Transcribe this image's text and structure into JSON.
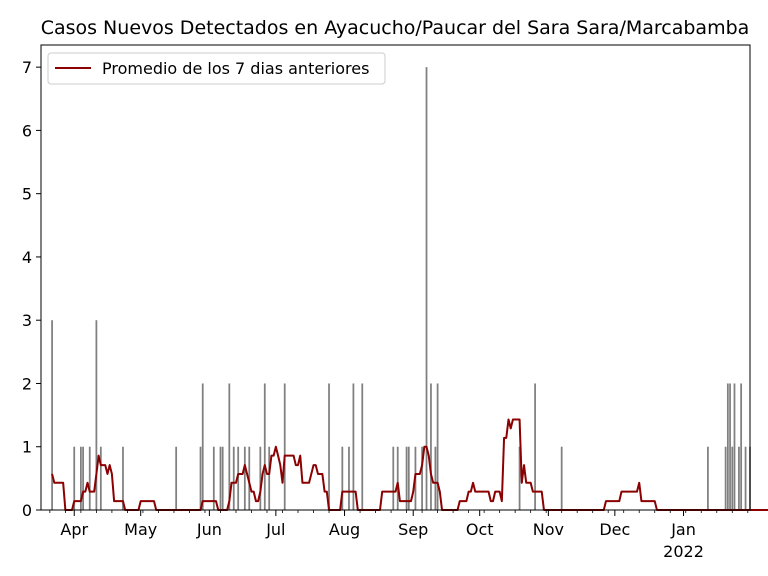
{
  "chart_data": {
    "type": "bar",
    "title": "Casos Nuevos Detectados en Ayacucho/Paucar del Sara Sara/Marcabamba",
    "xlabel": "",
    "ylabel": "",
    "x_start": "2021-03-17",
    "x_end": "2022-01-31",
    "ylim": [
      0,
      7.35
    ],
    "yticks": [
      0,
      1,
      2,
      3,
      4,
      5,
      6,
      7
    ],
    "xticks": [
      {
        "date": "2021-04-01",
        "label": "Apr",
        "sublabel": ""
      },
      {
        "date": "2021-05-01",
        "label": "May",
        "sublabel": ""
      },
      {
        "date": "2021-06-01",
        "label": "Jun",
        "sublabel": ""
      },
      {
        "date": "2021-07-01",
        "label": "Jul",
        "sublabel": ""
      },
      {
        "date": "2021-08-01",
        "label": "Aug",
        "sublabel": ""
      },
      {
        "date": "2021-09-01",
        "label": "Sep",
        "sublabel": ""
      },
      {
        "date": "2021-10-01",
        "label": "Oct",
        "sublabel": ""
      },
      {
        "date": "2021-11-01",
        "label": "Nov",
        "sublabel": ""
      },
      {
        "date": "2021-12-01",
        "label": "Dec",
        "sublabel": ""
      },
      {
        "date": "2022-01-01",
        "label": "Jan",
        "sublabel": "2022"
      }
    ],
    "grid": false,
    "legend_position": "top-left",
    "bar_color": "#808080",
    "line_color": "#8b0000",
    "series": [
      {
        "type": "bar",
        "x": [
          "2021-03-22",
          "2021-04-01",
          "2021-04-04",
          "2021-04-05",
          "2021-04-08",
          "2021-04-11",
          "2021-04-13",
          "2021-04-23",
          "2021-05-17",
          "2021-05-28",
          "2021-05-29",
          "2021-06-03",
          "2021-06-06",
          "2021-06-07",
          "2021-06-10",
          "2021-06-12",
          "2021-06-14",
          "2021-06-17",
          "2021-06-19",
          "2021-06-24",
          "2021-06-26",
          "2021-06-28",
          "2021-07-05",
          "2021-07-25",
          "2021-07-31",
          "2021-08-03",
          "2021-08-05",
          "2021-08-09",
          "2021-08-23",
          "2021-08-25",
          "2021-08-29",
          "2021-08-30",
          "2021-09-02",
          "2021-09-05",
          "2021-09-07",
          "2021-09-09",
          "2021-09-11",
          "2021-09-12",
          "2021-10-19",
          "2021-10-26",
          "2021-11-07",
          "2022-01-12",
          "2022-01-20",
          "2022-01-21",
          "2022-01-22",
          "2022-01-23",
          "2022-01-24",
          "2022-01-26",
          "2022-01-27",
          "2022-01-29",
          "2022-01-31"
        ],
        "values": [
          3,
          1,
          1,
          1,
          1,
          3,
          1,
          1,
          1,
          1,
          2,
          1,
          1,
          1,
          2,
          1,
          1,
          1,
          1,
          1,
          2,
          1,
          2,
          2,
          1,
          1,
          2,
          2,
          1,
          1,
          1,
          1,
          1,
          1,
          7,
          2,
          1,
          2,
          1,
          2,
          1,
          1,
          1,
          2,
          2,
          1,
          2,
          1,
          2,
          1,
          1
        ]
      },
      {
        "type": "line",
        "name": "Promedio de los 7 dias anteriores",
        "x_start": "2021-03-22",
        "values": [
          0.57,
          0.43,
          0.43,
          0.43,
          0.43,
          0.43,
          0.0,
          0.0,
          0.0,
          0.0,
          0.14,
          0.14,
          0.14,
          0.14,
          0.29,
          0.29,
          0.43,
          0.29,
          0.29,
          0.29,
          0.57,
          0.86,
          0.71,
          0.71,
          0.71,
          0.57,
          0.71,
          0.57,
          0.14,
          0.14,
          0.14,
          0.14,
          0.14,
          0.0,
          0.0,
          0.0,
          0.0,
          0.0,
          0.0,
          0.0,
          0.14,
          0.14,
          0.14,
          0.14,
          0.14,
          0.14,
          0.14,
          0.0,
          0.0,
          0.0,
          0.0,
          0.0,
          0.0,
          0.0,
          0.0,
          0.0,
          0.0,
          0.0,
          0.0,
          0.0,
          0.0,
          0.0,
          0.0,
          0.0,
          0.0,
          0.0,
          0.0,
          0.0,
          0.14,
          0.14,
          0.14,
          0.14,
          0.14,
          0.14,
          0.14,
          0.0,
          0.0,
          0.0,
          0.0,
          0.0,
          0.14,
          0.43,
          0.43,
          0.43,
          0.57,
          0.57,
          0.57,
          0.71,
          0.57,
          0.43,
          0.29,
          0.29,
          0.14,
          0.14,
          0.29,
          0.57,
          0.71,
          0.57,
          0.57,
          0.86,
          0.86,
          1.0,
          0.86,
          0.71,
          0.43,
          0.86,
          0.86,
          0.86,
          0.86,
          0.86,
          0.71,
          0.71,
          0.86,
          0.43,
          0.43,
          0.43,
          0.43,
          0.57,
          0.71,
          0.71,
          0.57,
          0.57,
          0.57,
          0.29,
          0.29,
          0.0,
          0.0,
          0.0,
          0.0,
          0.0,
          0.0,
          0.29,
          0.29,
          0.29,
          0.29,
          0.29,
          0.29,
          0.29,
          0.0,
          0.0,
          0.0,
          0.0,
          0.0,
          0.0,
          0.0,
          0.0,
          0.0,
          0.0,
          0.0,
          0.29,
          0.29,
          0.29,
          0.29,
          0.29,
          0.29,
          0.29,
          0.43,
          0.14,
          0.14,
          0.14,
          0.14,
          0.14,
          0.14,
          0.29,
          0.57,
          0.57,
          0.57,
          0.71,
          1.0,
          1.0,
          0.86,
          0.57,
          0.43,
          0.43,
          0.43,
          0.29,
          0.0,
          0.0,
          0.0,
          0.0,
          0.0,
          0.0,
          0.0,
          0.0,
          0.14,
          0.14,
          0.14,
          0.14,
          0.29,
          0.29,
          0.43,
          0.29,
          0.29,
          0.29,
          0.29,
          0.29,
          0.29,
          0.29,
          0.14,
          0.14,
          0.29,
          0.29,
          0.29,
          0.14,
          1.14,
          1.14,
          1.43,
          1.29,
          1.43,
          1.43,
          1.43,
          1.43,
          0.43,
          0.71,
          0.43,
          0.43,
          0.43,
          0.29,
          0.29,
          0.29,
          0.29,
          0.29,
          0.0,
          0.0,
          0.0,
          0.0,
          0.0,
          0.0,
          0.0,
          0.0,
          0.0,
          0.0,
          0.0,
          0.0,
          0.0,
          0.0,
          0.0,
          0.0,
          0.0,
          0.0,
          0.0,
          0.0,
          0.0,
          0.0,
          0.0,
          0.0,
          0.0,
          0.0,
          0.0,
          0.0,
          0.14,
          0.14,
          0.14,
          0.14,
          0.14,
          0.14,
          0.14,
          0.29,
          0.29,
          0.29,
          0.29,
          0.29,
          0.29,
          0.29,
          0.29,
          0.43,
          0.14,
          0.14,
          0.14,
          0.14,
          0.14,
          0.14,
          0.14,
          0.0,
          0.0,
          0.0,
          0.0,
          0.0,
          0.0,
          0.0,
          0.0,
          0.0,
          0.0,
          0.0,
          0.0,
          0.0,
          0.0,
          0.0,
          0.0,
          0.0,
          0.0,
          0.0,
          0.0,
          0.0,
          0.0,
          0.0,
          0.0,
          0.0,
          0.0,
          0.0,
          0.0,
          0.0,
          0.0,
          0.0,
          0.0,
          0.0,
          0.0,
          0.0,
          0.0,
          0.0,
          0.0,
          0.0,
          0.0,
          0.0,
          0.0,
          0.0,
          0.0,
          0.0,
          0.0,
          0.0,
          0.0,
          0.0,
          0.0,
          0.0,
          0.0,
          0.0,
          0.0,
          0.0,
          0.0,
          0.0,
          0.0,
          0.0,
          0.0,
          0.0,
          0.14,
          0.14,
          0.14,
          0.14,
          0.14,
          0.14,
          0.14,
          0.43,
          0.29,
          0.43,
          0.57,
          0.71,
          0.71,
          0.71,
          0.71,
          0.71,
          0.57,
          0.86,
          0.71,
          0.57,
          0.43,
          0.57,
          0.57,
          0.71,
          0.71
        ]
      }
    ]
  }
}
